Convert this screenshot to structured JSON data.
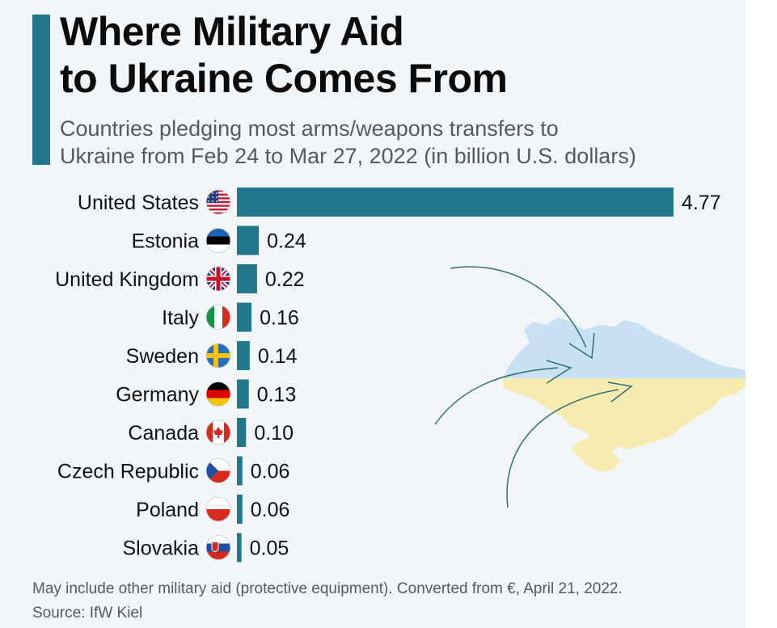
{
  "header": {
    "title_line1": "Where Military Aid",
    "title_line2": "to Ukraine Comes From",
    "subtitle_line1": "Countries pledging most arms/weapons transfers to",
    "subtitle_line2": "Ukraine from Feb 24 to Mar 27, 2022 (in billion U.S. dollars)"
  },
  "footer": {
    "note": "May include other military aid (protective equipment). Converted from €, April 21, 2022.",
    "source": "Source: IfW Kiel"
  },
  "colors": {
    "bar": "#22788a",
    "accent": "#22788a",
    "map_blue": "#c8e1f5",
    "map_yellow": "#f7ebb0"
  },
  "chart_data": {
    "type": "bar",
    "orientation": "horizontal",
    "categories": [
      "United States",
      "Estonia",
      "United Kingdom",
      "Italy",
      "Sweden",
      "Germany",
      "Canada",
      "Czech Republic",
      "Poland",
      "Slovakia"
    ],
    "values": [
      4.77,
      0.24,
      0.22,
      0.16,
      0.14,
      0.13,
      0.1,
      0.06,
      0.06,
      0.05
    ],
    "value_labels": [
      "4.77",
      "0.24",
      "0.22",
      "0.16",
      "0.14",
      "0.13",
      "0.10",
      "0.06",
      "0.06",
      "0.05"
    ],
    "flags": [
      "flag-us-icon",
      "flag-estonia-icon",
      "flag-uk-icon",
      "flag-italy-icon",
      "flag-sweden-icon",
      "flag-germany-icon",
      "flag-canada-icon",
      "flag-czech-icon",
      "flag-poland-icon",
      "flag-slovakia-icon"
    ],
    "xlim": [
      0,
      4.77
    ],
    "grid": false,
    "legend": "none"
  }
}
